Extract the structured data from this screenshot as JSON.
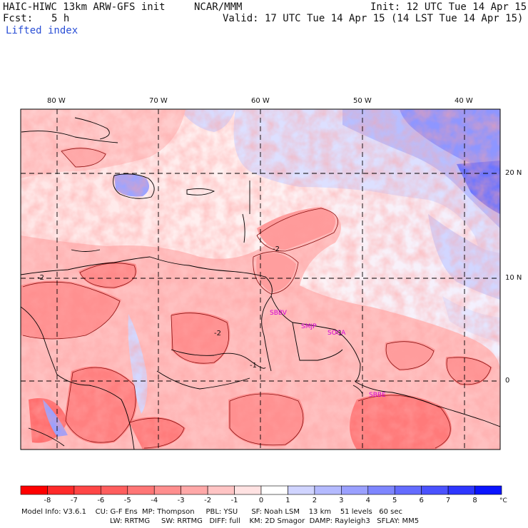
{
  "header": {
    "model": "HAIC-HIWC 13km ARW-GFS init",
    "org": "NCAR/MMM",
    "init": "Init: 12 UTC Tue 14 Apr 15",
    "fcst_label": "Fcst:",
    "fcst_value": "5 h",
    "valid": "Valid: 17 UTC Tue 14 Apr 15 (14 LST Tue 14 Apr 15)",
    "field": "Lifted index"
  },
  "map": {
    "lon_labels": [
      "80 W",
      "70 W",
      "60 W",
      "50 W",
      "40 W"
    ],
    "lat_labels": [
      "20 N",
      "10 N",
      "0"
    ],
    "contour_labels": [
      "-2",
      "-2",
      "-1",
      "-1",
      "-2"
    ],
    "stations": [
      "SBBV",
      "SMJP",
      "SOCA",
      "SBBE"
    ],
    "colors": {
      "negative_strong": "#ff1a1a",
      "negative_light": "#ffc8c8",
      "neutral": "#fff0f0",
      "positive_light": "#c8d0ff",
      "positive_strong": "#1a1aff",
      "station": "#d400d4"
    }
  },
  "colorbar": {
    "ticks": [
      "-8",
      "-7",
      "-6",
      "-5",
      "-4",
      "-3",
      "-2",
      "-1",
      "0",
      "1",
      "2",
      "3",
      "4",
      "5",
      "6",
      "7",
      "8"
    ],
    "unit": "°C",
    "colors": [
      "#ff0000",
      "#ff2a2a",
      "#ff4646",
      "#ff5e5e",
      "#ff7676",
      "#ff8e8e",
      "#ffa8a8",
      "#ffc4c4",
      "#ffe2e2",
      "#ffffff",
      "#d0d4ff",
      "#b4baff",
      "#9aa0ff",
      "#7e86ff",
      "#646cff",
      "#4a52ff",
      "#2e36ff",
      "#0a14ff"
    ]
  },
  "model_info": {
    "line1": "Model Info: V3.6.1    CU: G-F Ens  MP: Thompson     PBL: YSU      SF: Noah LSM    13 km    51 levels   60 sec",
    "line2": "LW: RRTMG     SW: RRTMG   DIFF: full    KM: 2D Smagor  DAMP: Rayleigh3   SFLAY: MM5"
  }
}
